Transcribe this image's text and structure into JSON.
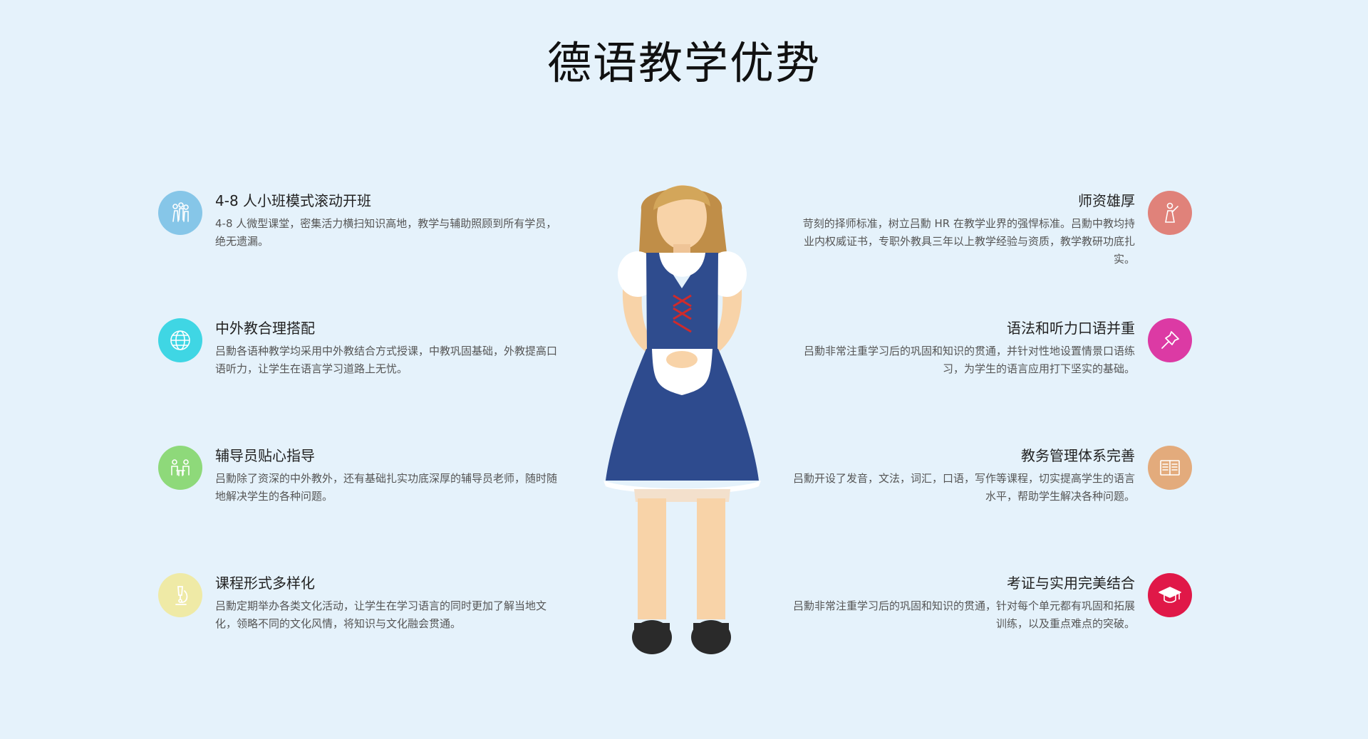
{
  "page": {
    "title": "德语教学优势"
  },
  "features_left": [
    {
      "title": "4-8 人小班模式滚动开班",
      "desc": "4-8 人微型课堂，密集活力横扫知识高地，教学与辅助照顾到所有学员，绝无遗漏。",
      "icon": "people-icon",
      "color": "#86c6e8"
    },
    {
      "title": "中外教合理搭配",
      "desc": "吕勳各语种教学均采用中外教结合方式授课，中教巩固基础，外教提高口语听力，让学生在语言学习道路上无忧。",
      "icon": "globe-icon",
      "color": "#3fd6e4"
    },
    {
      "title": "辅导员贴心指导",
      "desc": "吕勳除了资深的中外教外，还有基础扎实功底深厚的辅导员老师，随时随地解决学生的各种问题。",
      "icon": "tutor-desk-icon",
      "color": "#8ed97a"
    },
    {
      "title": "课程形式多样化",
      "desc": "吕勳定期举办各类文化活动，让学生在学习语言的同时更加了解当地文化，领略不同的文化风情，将知识与文化融会贯通。",
      "icon": "microscope-icon",
      "color": "#efeaa6"
    }
  ],
  "features_right": [
    {
      "title": "师资雄厚",
      "desc": "苛刻的择师标准，树立吕勳 HR 在教学业界的强悍标准。吕勳中教均持业内权威证书，专职外教具三年以上教学经验与资质，教学教研功底扎实。",
      "icon": "teacher-icon",
      "color": "#e0827a"
    },
    {
      "title": "语法和听力口语并重",
      "desc": "吕勳非常注重学习后的巩固和知识的贯通，并针对性地设置情景口语练习，为学生的语言应用打下坚实的基础。",
      "icon": "pin-icon",
      "color": "#dc3aa4"
    },
    {
      "title": "教务管理体系完善",
      "desc": "吕勳开设了发音，文法，词汇，口语，写作等课程，切实提高学生的语言水平，帮助学生解决各种问题。",
      "icon": "open-book-icon",
      "color": "#e3ab7c"
    },
    {
      "title": "考证与实用完美结合",
      "desc": "吕勳非常注重学习后的巩固和知识的贯通，针对每个单元都有巩固和拓展训练，以及重点难点的突破。",
      "icon": "graduation-cap-icon",
      "color": "#e01848"
    }
  ]
}
